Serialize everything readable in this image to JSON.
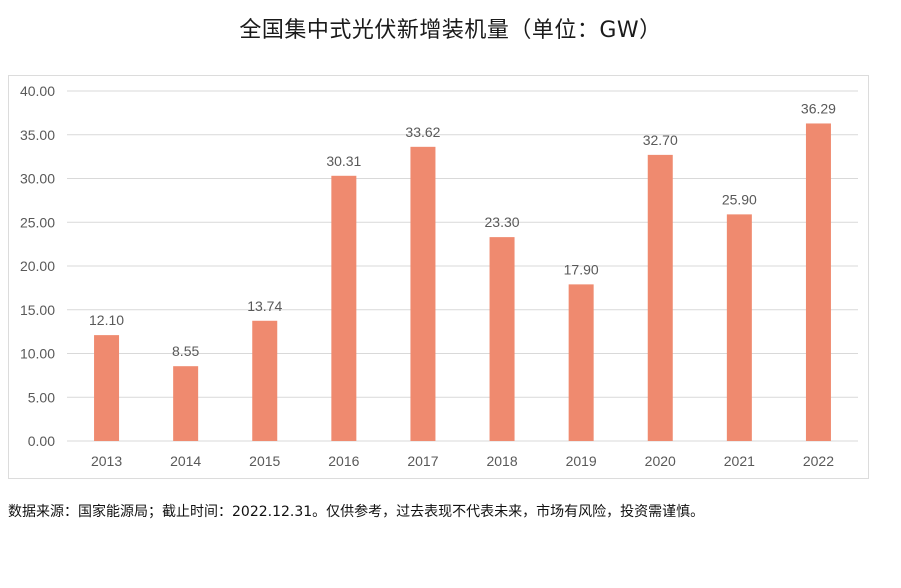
{
  "title": "全国集中式光伏新增装机量（单位：GW）",
  "footnote": "数据来源：国家能源局；截止时间：2022.12.31。仅供参考，过去表现不代表未来，市场有风险，投资需谨慎。",
  "colors": {
    "bar": "#EF8A6F",
    "grid": "#D9D9D9",
    "tick_text": "#595959"
  },
  "chart_data": {
    "type": "bar",
    "title": "全国集中式光伏新增装机量（单位：GW）",
    "xlabel": "",
    "ylabel": "",
    "categories": [
      "2013",
      "2014",
      "2015",
      "2016",
      "2017",
      "2018",
      "2019",
      "2020",
      "2021",
      "2022"
    ],
    "values": [
      12.1,
      8.55,
      13.74,
      30.31,
      33.62,
      23.3,
      17.9,
      32.7,
      25.9,
      36.29
    ],
    "data_labels": [
      "12.10",
      "8.55",
      "13.74",
      "30.31",
      "33.62",
      "23.30",
      "17.90",
      "32.70",
      "25.90",
      "36.29"
    ],
    "ylim": [
      0,
      40
    ],
    "yticks": [
      0,
      5,
      10,
      15,
      20,
      25,
      30,
      35,
      40
    ],
    "ytick_labels": [
      "0.00",
      "5.00",
      "10.00",
      "15.00",
      "20.00",
      "25.00",
      "30.00",
      "35.00",
      "40.00"
    ],
    "grid": true,
    "legend": "none"
  }
}
